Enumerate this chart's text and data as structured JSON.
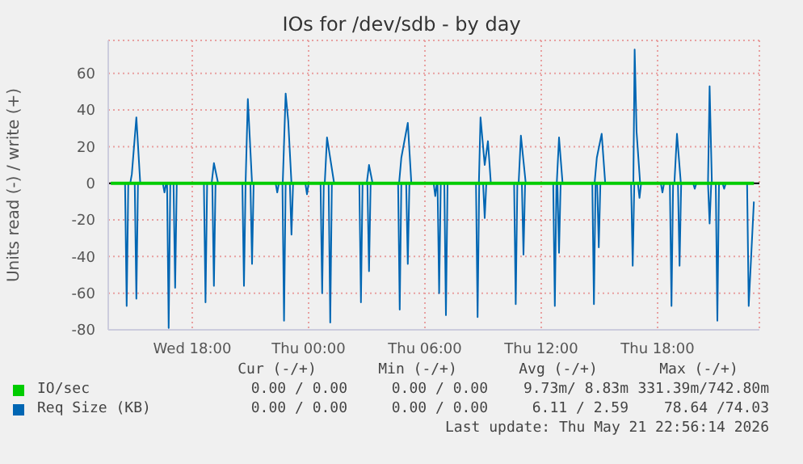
{
  "chart_data": {
    "type": "line",
    "title": "IOs for /dev/sdb - by day",
    "ylabel": "Units read (-) / write (+)",
    "xlim": [
      "2026-05-20T13:40",
      "2026-05-21T23:15"
    ],
    "xticks": [
      {
        "value": "2026-05-20T18:00",
        "label": "Wed 18:00"
      },
      {
        "value": "2026-05-21T00:00",
        "label": "Thu 00:00"
      },
      {
        "value": "2026-05-21T06:00",
        "label": "Thu 06:00"
      },
      {
        "value": "2026-05-21T12:00",
        "label": "Thu 12:00"
      },
      {
        "value": "2026-05-21T18:00",
        "label": "Thu 18:00"
      }
    ],
    "ylim": [
      -80,
      78
    ],
    "yticks": [
      -80,
      -60,
      -40,
      -20,
      0,
      20,
      40,
      60
    ],
    "grid": true,
    "legend": "bottom",
    "marker": "none",
    "line_style": "solid",
    "ref_lines": [
      {
        "axis": "y",
        "value": 0,
        "color": "#000000"
      }
    ],
    "series": [
      {
        "name": "IO/sec",
        "color": "#00cc00",
        "x": [
          "2026-05-20T13:48",
          "2026-05-21T22:58"
        ],
        "values": [
          0,
          0
        ]
      },
      {
        "name": "Req Size (KB)",
        "color": "#0066b3",
        "x": [
          "2026-05-20T13:48",
          "2026-05-20T14:48",
          "2026-05-20T14:53",
          "2026-05-20T15:07",
          "2026-05-20T15:19",
          "2026-05-20T19:00",
          "2026-05-20T19:07",
          "2026-05-20T19:20",
          "2026-05-20T20:45",
          "2026-05-20T20:52",
          "2026-05-20T21:05",
          "2026-05-20T22:40",
          "2026-05-20T22:49",
          "2026-05-20T22:57",
          "2026-05-20T23:07",
          "2026-05-21T00:50",
          "2026-05-21T00:57",
          "2026-05-21T01:19",
          "2026-05-21T03:00",
          "2026-05-21T03:07",
          "2026-05-21T03:18",
          "2026-05-21T04:40",
          "2026-05-21T04:47",
          "2026-05-21T05:07",
          "2026-05-21T05:18",
          "2026-05-21T08:47",
          "2026-05-21T08:52",
          "2026-05-21T09:05",
          "2026-05-21T09:15",
          "2026-05-21T09:24",
          "2026-05-21T10:50",
          "2026-05-21T10:57",
          "2026-05-21T11:12",
          "2026-05-21T12:48",
          "2026-05-21T12:55",
          "2026-05-21T13:06",
          "2026-05-21T14:45",
          "2026-05-21T14:52",
          "2026-05-21T15:07",
          "2026-05-21T15:18",
          "2026-05-21T16:45",
          "2026-05-21T16:49",
          "2026-05-21T16:55",
          "2026-05-21T17:06",
          "2026-05-21T18:52",
          "2026-05-21T19:00",
          "2026-05-21T19:12",
          "2026-05-21T20:36",
          "2026-05-21T20:41",
          "2026-05-21T20:48",
          "2026-05-21T22:58"
        ],
        "values": [
          0,
          0,
          5,
          36,
          0,
          0,
          11,
          0,
          0,
          46,
          0,
          0,
          49,
          34,
          0,
          0,
          25,
          0,
          0,
          10,
          0,
          0,
          14,
          33,
          0,
          0,
          36,
          10,
          23,
          0,
          0,
          26,
          0,
          0,
          25,
          0,
          0,
          14,
          27,
          0,
          0,
          73,
          28,
          0,
          0,
          27,
          0,
          0,
          53,
          0,
          0
        ]
      },
      {
        "color": "#0066b3",
        "x": [
          "2026-05-20T13:48",
          "2026-05-20T14:32",
          "2026-05-20T14:37",
          "2026-05-20T14:42",
          "2026-05-20T15:02",
          "2026-05-20T15:07",
          "2026-05-20T15:12",
          "2026-05-20T16:29",
          "2026-05-20T16:34",
          "2026-05-20T16:39",
          "2026-05-20T16:42",
          "2026-05-20T16:47",
          "2026-05-20T16:52",
          "2026-05-20T17:02",
          "2026-05-20T17:07",
          "2026-05-20T17:12",
          "2026-05-20T18:36",
          "2026-05-20T18:41",
          "2026-05-20T18:46",
          "2026-05-20T19:02",
          "2026-05-20T19:07",
          "2026-05-20T19:12",
          "2026-05-20T20:35",
          "2026-05-20T20:40",
          "2026-05-20T20:45",
          "2026-05-20T21:00",
          "2026-05-20T21:05",
          "2026-05-20T21:10",
          "2026-05-20T22:18",
          "2026-05-20T22:23",
          "2026-05-20T22:28",
          "2026-05-20T22:39",
          "2026-05-20T22:44",
          "2026-05-20T22:49",
          "2026-05-20T23:02",
          "2026-05-20T23:07",
          "2026-05-20T23:12",
          "2026-05-20T23:50",
          "2026-05-20T23:55",
          "2026-05-21T00:00",
          "2026-05-21T00:37",
          "2026-05-21T00:42",
          "2026-05-21T00:47",
          "2026-05-21T01:02",
          "2026-05-21T01:07",
          "2026-05-21T01:12",
          "2026-05-21T02:37",
          "2026-05-21T02:42",
          "2026-05-21T02:47",
          "2026-05-21T03:02",
          "2026-05-21T03:07",
          "2026-05-21T03:12",
          "2026-05-21T04:37",
          "2026-05-21T04:42",
          "2026-05-21T04:47",
          "2026-05-21T05:02",
          "2026-05-21T05:07",
          "2026-05-21T05:12",
          "2026-05-21T06:27",
          "2026-05-21T06:32",
          "2026-05-21T06:37",
          "2026-05-21T06:39",
          "2026-05-21T06:44",
          "2026-05-21T06:49",
          "2026-05-21T07:00",
          "2026-05-21T07:05",
          "2026-05-21T07:10",
          "2026-05-21T08:38",
          "2026-05-21T08:43",
          "2026-05-21T08:48",
          "2026-05-21T09:00",
          "2026-05-21T09:05",
          "2026-05-21T09:10",
          "2026-05-21T10:36",
          "2026-05-21T10:41",
          "2026-05-21T10:46",
          "2026-05-21T11:00",
          "2026-05-21T11:05",
          "2026-05-21T11:10",
          "2026-05-21T12:37",
          "2026-05-21T12:42",
          "2026-05-21T12:47",
          "2026-05-21T12:50",
          "2026-05-21T12:55",
          "2026-05-21T13:00",
          "2026-05-21T14:38",
          "2026-05-21T14:43",
          "2026-05-21T14:48",
          "2026-05-21T14:53",
          "2026-05-21T14:58",
          "2026-05-21T15:03",
          "2026-05-21T16:38",
          "2026-05-21T16:43",
          "2026-05-21T16:48",
          "2026-05-21T16:59",
          "2026-05-21T17:04",
          "2026-05-21T17:09",
          "2026-05-21T18:10",
          "2026-05-21T18:15",
          "2026-05-21T18:20",
          "2026-05-21T18:38",
          "2026-05-21T18:43",
          "2026-05-21T18:48",
          "2026-05-21T19:03",
          "2026-05-21T19:08",
          "2026-05-21T19:13",
          "2026-05-21T19:50",
          "2026-05-21T19:55",
          "2026-05-21T20:00",
          "2026-05-21T20:36",
          "2026-05-21T20:41",
          "2026-05-21T20:46",
          "2026-05-21T21:00",
          "2026-05-21T21:05",
          "2026-05-21T21:10",
          "2026-05-21T21:21",
          "2026-05-21T21:26",
          "2026-05-21T21:31",
          "2026-05-21T22:37",
          "2026-05-21T22:42",
          "2026-05-21T22:58"
        ],
        "values": [
          0,
          0,
          -67,
          0,
          0,
          -63,
          0,
          0,
          -5,
          0,
          0,
          -79,
          0,
          0,
          -57,
          0,
          0,
          -65,
          0,
          0,
          -56,
          0,
          0,
          -56,
          0,
          0,
          -44,
          0,
          0,
          -5,
          0,
          0,
          -75,
          0,
          0,
          -28,
          0,
          0,
          -6,
          0,
          0,
          -60,
          0,
          0,
          -76,
          0,
          0,
          -65,
          0,
          0,
          -48,
          0,
          0,
          -69,
          0,
          0,
          -44,
          0,
          0,
          -7,
          0,
          0,
          -60,
          0,
          0,
          -72,
          0,
          0,
          -73,
          0,
          0,
          -19,
          0,
          0,
          -66,
          0,
          0,
          -39,
          0,
          0,
          -67,
          0,
          0,
          -38,
          0,
          0,
          -66,
          0,
          0,
          -35,
          0,
          0,
          -45,
          0,
          0,
          -8,
          0,
          0,
          -5,
          0,
          0,
          -67,
          0,
          0,
          -45,
          0,
          0,
          -3,
          0,
          0,
          -22,
          0,
          0,
          -75,
          0,
          0,
          -3,
          0,
          0,
          -67,
          -10
        ]
      }
    ],
    "annotations": [
      "Cur (-/+)",
      "Min (-/+)",
      "Avg (-/+)",
      "Max (-/+)",
      "0.00 / 0.00",
      "0.00 / 0.00",
      "9.73m/ 8.83m",
      "331.39m/742.80m",
      "0.00 / 0.00",
      "0.00 / 0.00",
      "6.11 / 2.59",
      "78.64 /74.03",
      "Last update: Thu May 21 22:56:14 2026"
    ]
  }
}
